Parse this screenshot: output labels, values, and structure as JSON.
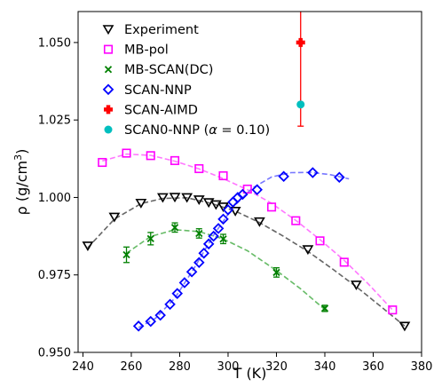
{
  "chart_data": {
    "type": "scatter",
    "xlabel": "T (K)",
    "ylabel_main": "ρ (g/cm",
    "ylabel_sup": "3",
    "ylabel_close": ")",
    "xlim": [
      238,
      380
    ],
    "ylim": [
      0.95,
      1.06
    ],
    "xticks": [
      240,
      260,
      280,
      300,
      320,
      340,
      360,
      380
    ],
    "xtick_labels": [
      "240",
      "260",
      "280",
      "300",
      "320",
      "340",
      "360",
      "380"
    ],
    "yticks": [
      0.95,
      0.975,
      1.0,
      1.025,
      1.05
    ],
    "ytick_labels": [
      "0.950",
      "0.975",
      "1.000",
      "1.025",
      "1.050"
    ],
    "legend_position": "top-left",
    "series": [
      {
        "name": "Experiment",
        "marker": "triangle-down",
        "color": "#000000",
        "fit_color": "#666666",
        "x": [
          242,
          253,
          264,
          273,
          278,
          283,
          288,
          292,
          295,
          298,
          303,
          313,
          333,
          353,
          373
        ],
        "y": [
          0.9844,
          0.9937,
          0.9982,
          1.0,
          1.0001,
          1.0,
          0.9993,
          0.9984,
          0.9977,
          0.997,
          0.9956,
          0.9922,
          0.9832,
          0.9718,
          0.9585
        ],
        "fit": [
          [
            242,
            0.9838
          ],
          [
            253,
            0.993
          ],
          [
            264,
            0.998
          ],
          [
            273,
            0.9997
          ],
          [
            283,
            0.9999
          ],
          [
            293,
            0.9981
          ],
          [
            303,
            0.9956
          ],
          [
            313,
            0.9919
          ],
          [
            323,
            0.9874
          ],
          [
            333,
            0.9826
          ],
          [
            343,
            0.977
          ],
          [
            353,
            0.9712
          ],
          [
            363,
            0.9649
          ],
          [
            373,
            0.9585
          ]
        ]
      },
      {
        "name": "MB-pol",
        "marker": "square",
        "color": "#ff00ff",
        "fit_color": "#ff77ff",
        "x": [
          248,
          258,
          268,
          278,
          288,
          298,
          308,
          318,
          328,
          338,
          348,
          368
        ],
        "y": [
          1.0113,
          1.0143,
          1.0135,
          1.0119,
          1.0093,
          1.007,
          1.0027,
          0.9969,
          0.9925,
          0.986,
          0.9791,
          0.9637
        ],
        "fit": [
          [
            248,
            1.0118
          ],
          [
            258,
            1.014
          ],
          [
            268,
            1.0136
          ],
          [
            278,
            1.0117
          ],
          [
            288,
            1.0092
          ],
          [
            298,
            1.0061
          ],
          [
            308,
            1.0025
          ],
          [
            318,
            0.9981
          ],
          [
            328,
            0.9926
          ],
          [
            338,
            0.9864
          ],
          [
            348,
            0.9797
          ],
          [
            358,
            0.9721
          ],
          [
            368,
            0.9637
          ]
        ]
      },
      {
        "name": "MB-SCAN(DC)",
        "marker": "x",
        "color": "#008000",
        "fit_color": "#66bb66",
        "x": [
          258,
          268,
          278,
          288,
          298,
          320,
          340
        ],
        "y": [
          0.9815,
          0.9867,
          0.9903,
          0.9884,
          0.9866,
          0.9758,
          0.9642
        ],
        "err": [
          0.0025,
          0.002,
          0.0015,
          0.0015,
          0.0015,
          0.0015,
          0.001
        ],
        "fit": [
          [
            258,
            0.982
          ],
          [
            268,
            0.9874
          ],
          [
            278,
            0.9896
          ],
          [
            288,
            0.989
          ],
          [
            298,
            0.9866
          ],
          [
            308,
            0.9828
          ],
          [
            320,
            0.9764
          ],
          [
            330,
            0.9705
          ],
          [
            340,
            0.9638
          ]
        ]
      },
      {
        "name": "SCAN-NNP",
        "marker": "diamond",
        "color": "#0000ff",
        "fit_color": "#7777ff",
        "x": [
          263,
          268,
          272,
          276,
          279,
          282,
          285,
          288,
          290,
          292,
          294,
          296,
          298,
          300,
          302,
          304,
          306,
          312,
          323,
          335,
          346
        ],
        "y": [
          0.9585,
          0.96,
          0.962,
          0.9655,
          0.969,
          0.9725,
          0.976,
          0.979,
          0.982,
          0.985,
          0.9875,
          0.99,
          0.993,
          0.996,
          0.9985,
          1.0,
          1.001,
          1.0025,
          1.0068,
          1.008,
          1.0065
        ],
        "fit": [
          [
            263,
            0.958
          ],
          [
            270,
            0.961
          ],
          [
            278,
            0.9675
          ],
          [
            286,
            0.9772
          ],
          [
            294,
            0.9878
          ],
          [
            302,
            0.9968
          ],
          [
            310,
            1.003
          ],
          [
            318,
            1.0066
          ],
          [
            326,
            1.008
          ],
          [
            334,
            1.0081
          ],
          [
            342,
            1.0074
          ],
          [
            350,
            1.006
          ]
        ]
      },
      {
        "name": "SCAN-AIMD",
        "marker": "plus-filled",
        "color": "#ff0000",
        "x": [
          330
        ],
        "y": [
          1.05
        ],
        "err": [
          0.027
        ]
      },
      {
        "name": "SCAN0-NNP (α = 0.10)",
        "name_prefix": "SCAN0-NNP (",
        "name_alpha": "α",
        "name_suffix": " = 0.10)",
        "marker": "circle",
        "color": "#00bfbf",
        "x": [
          330
        ],
        "y": [
          1.03
        ]
      }
    ]
  }
}
